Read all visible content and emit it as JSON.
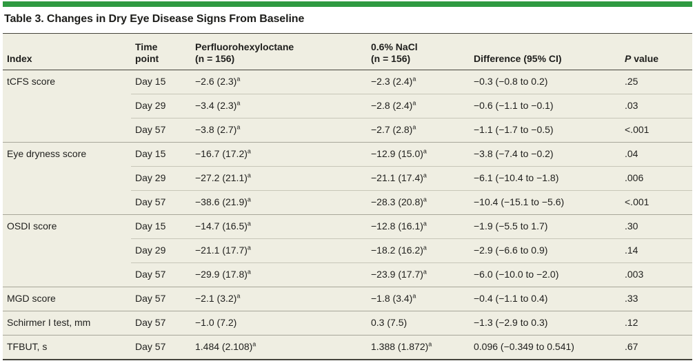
{
  "table_title": "Table 3. Changes in Dry Eye Disease Signs From Baseline",
  "colors": {
    "accent_green": "#2f9a41",
    "table_background": "#efeee2",
    "rule_dark": "#43423a",
    "rule_group": "#a7a699",
    "rule_row": "#c7c6b8"
  },
  "headers": [
    {
      "line1": "Index"
    },
    {
      "line1": "Time",
      "line2": "point"
    },
    {
      "line1": "Perfluorohexyloctane",
      "line2": "(n = 156)"
    },
    {
      "line1": "0.6% NaCl",
      "line2": "(n = 156)"
    },
    {
      "line1": "Difference (95% CI)"
    },
    {
      "italic": "P",
      "rest": " value"
    }
  ],
  "groups": [
    {
      "index": "tCFS score",
      "rows": [
        {
          "time": "Day 15",
          "pfho": {
            "v": "−2.6 (2.3)",
            "sup": "a"
          },
          "nacl": {
            "v": "−2.3 (2.4)",
            "sup": "a"
          },
          "diff": "−0.3 (−0.8 to 0.2)",
          "p": ".25"
        },
        {
          "time": "Day 29",
          "pfho": {
            "v": "−3.4 (2.3)",
            "sup": "a"
          },
          "nacl": {
            "v": "−2.8 (2.4)",
            "sup": "a"
          },
          "diff": "−0.6 (−1.1 to −0.1)",
          "p": ".03"
        },
        {
          "time": "Day 57",
          "pfho": {
            "v": "−3.8 (2.7)",
            "sup": "a"
          },
          "nacl": {
            "v": "−2.7 (2.8)",
            "sup": "a"
          },
          "diff": "−1.1 (−1.7 to −0.5)",
          "p": "<.001"
        }
      ]
    },
    {
      "index": "Eye dryness score",
      "rows": [
        {
          "time": "Day 15",
          "pfho": {
            "v": "−16.7 (17.2)",
            "sup": "a"
          },
          "nacl": {
            "v": "−12.9 (15.0)",
            "sup": "a"
          },
          "diff": "−3.8 (−7.4 to −0.2)",
          "p": ".04"
        },
        {
          "time": "Day 29",
          "pfho": {
            "v": "−27.2 (21.1)",
            "sup": "a"
          },
          "nacl": {
            "v": "−21.1 (17.4)",
            "sup": "a"
          },
          "diff": "−6.1 (−10.4 to −1.8)",
          "p": ".006"
        },
        {
          "time": "Day 57",
          "pfho": {
            "v": "−38.6 (21.9)",
            "sup": "a"
          },
          "nacl": {
            "v": "−28.3 (20.8)",
            "sup": "a"
          },
          "diff": "−10.4 (−15.1 to −5.6)",
          "p": "<.001"
        }
      ]
    },
    {
      "index": "OSDI score",
      "rows": [
        {
          "time": "Day 15",
          "pfho": {
            "v": "−14.7 (16.5)",
            "sup": "a"
          },
          "nacl": {
            "v": "−12.8 (16.1)",
            "sup": "a"
          },
          "diff": "−1.9 (−5.5 to 1.7)",
          "p": ".30"
        },
        {
          "time": "Day 29",
          "pfho": {
            "v": "−21.1 (17.7)",
            "sup": "a"
          },
          "nacl": {
            "v": "−18.2 (16.2)",
            "sup": "a"
          },
          "diff": "−2.9 (−6.6 to 0.9)",
          "p": ".14"
        },
        {
          "time": "Day 57",
          "pfho": {
            "v": "−29.9 (17.8)",
            "sup": "a"
          },
          "nacl": {
            "v": "−23.9 (17.7)",
            "sup": "a"
          },
          "diff": "−6.0 (−10.0 to −2.0)",
          "p": ".003"
        }
      ]
    },
    {
      "index": "MGD score",
      "rows": [
        {
          "time": "Day 57",
          "pfho": {
            "v": "−2.1 (3.2)",
            "sup": "a"
          },
          "nacl": {
            "v": "−1.8 (3.4)",
            "sup": "a"
          },
          "diff": "−0.4 (−1.1 to 0.4)",
          "p": ".33"
        }
      ]
    },
    {
      "index": "Schirmer I test, mm",
      "rows": [
        {
          "time": "Day 57",
          "pfho": {
            "v": "−1.0 (7.2)",
            "sup": ""
          },
          "nacl": {
            "v": "0.3 (7.5)",
            "sup": ""
          },
          "diff": "−1.3 (−2.9 to 0.3)",
          "p": ".12"
        }
      ]
    },
    {
      "index": "TFBUT, s",
      "rows": [
        {
          "time": "Day 57",
          "pfho": {
            "v": "1.484 (2.108)",
            "sup": "a"
          },
          "nacl": {
            "v": "1.388 (1.872)",
            "sup": "a"
          },
          "diff": "0.096 (−0.349 to 0.541)",
          "p": ".67"
        }
      ]
    }
  ],
  "chart_data": {
    "type": "table",
    "title": "Table 3. Changes in Dry Eye Disease Signs From Baseline",
    "columns": [
      "Index",
      "Time point",
      "Perfluorohexyloctane (n = 156)",
      "0.6% NaCl (n = 156)",
      "Difference (95% CI)",
      "P value"
    ],
    "rows": [
      [
        "tCFS score",
        "Day 15",
        "−2.6 (2.3)ᵃ",
        "−2.3 (2.4)ᵃ",
        "−0.3 (−0.8 to 0.2)",
        ".25"
      ],
      [
        "tCFS score",
        "Day 29",
        "−3.4 (2.3)ᵃ",
        "−2.8 (2.4)ᵃ",
        "−0.6 (−1.1 to −0.1)",
        ".03"
      ],
      [
        "tCFS score",
        "Day 57",
        "−3.8 (2.7)ᵃ",
        "−2.7 (2.8)ᵃ",
        "−1.1 (−1.7 to −0.5)",
        "<.001"
      ],
      [
        "Eye dryness score",
        "Day 15",
        "−16.7 (17.2)ᵃ",
        "−12.9 (15.0)ᵃ",
        "−3.8 (−7.4 to −0.2)",
        ".04"
      ],
      [
        "Eye dryness score",
        "Day 29",
        "−27.2 (21.1)ᵃ",
        "−21.1 (17.4)ᵃ",
        "−6.1 (−10.4 to −1.8)",
        ".006"
      ],
      [
        "Eye dryness score",
        "Day 57",
        "−38.6 (21.9)ᵃ",
        "−28.3 (20.8)ᵃ",
        "−10.4 (−15.1 to −5.6)",
        "<.001"
      ],
      [
        "OSDI score",
        "Day 15",
        "−14.7 (16.5)ᵃ",
        "−12.8 (16.1)ᵃ",
        "−1.9 (−5.5 to 1.7)",
        ".30"
      ],
      [
        "OSDI score",
        "Day 29",
        "−21.1 (17.7)ᵃ",
        "−18.2 (16.2)ᵃ",
        "−2.9 (−6.6 to 0.9)",
        ".14"
      ],
      [
        "OSDI score",
        "Day 57",
        "−29.9 (17.8)ᵃ",
        "−23.9 (17.7)ᵃ",
        "−6.0 (−10.0 to −2.0)",
        ".003"
      ],
      [
        "MGD score",
        "Day 57",
        "−2.1 (3.2)ᵃ",
        "−1.8 (3.4)ᵃ",
        "−0.4 (−1.1 to 0.4)",
        ".33"
      ],
      [
        "Schirmer I test, mm",
        "Day 57",
        "−1.0 (7.2)",
        "0.3 (7.5)",
        "−1.3 (−2.9 to 0.3)",
        ".12"
      ],
      [
        "TFBUT, s",
        "Day 57",
        "1.484 (2.108)ᵃ",
        "1.388 (1.872)ᵃ",
        "0.096 (−0.349 to 0.541)",
        ".67"
      ]
    ]
  }
}
